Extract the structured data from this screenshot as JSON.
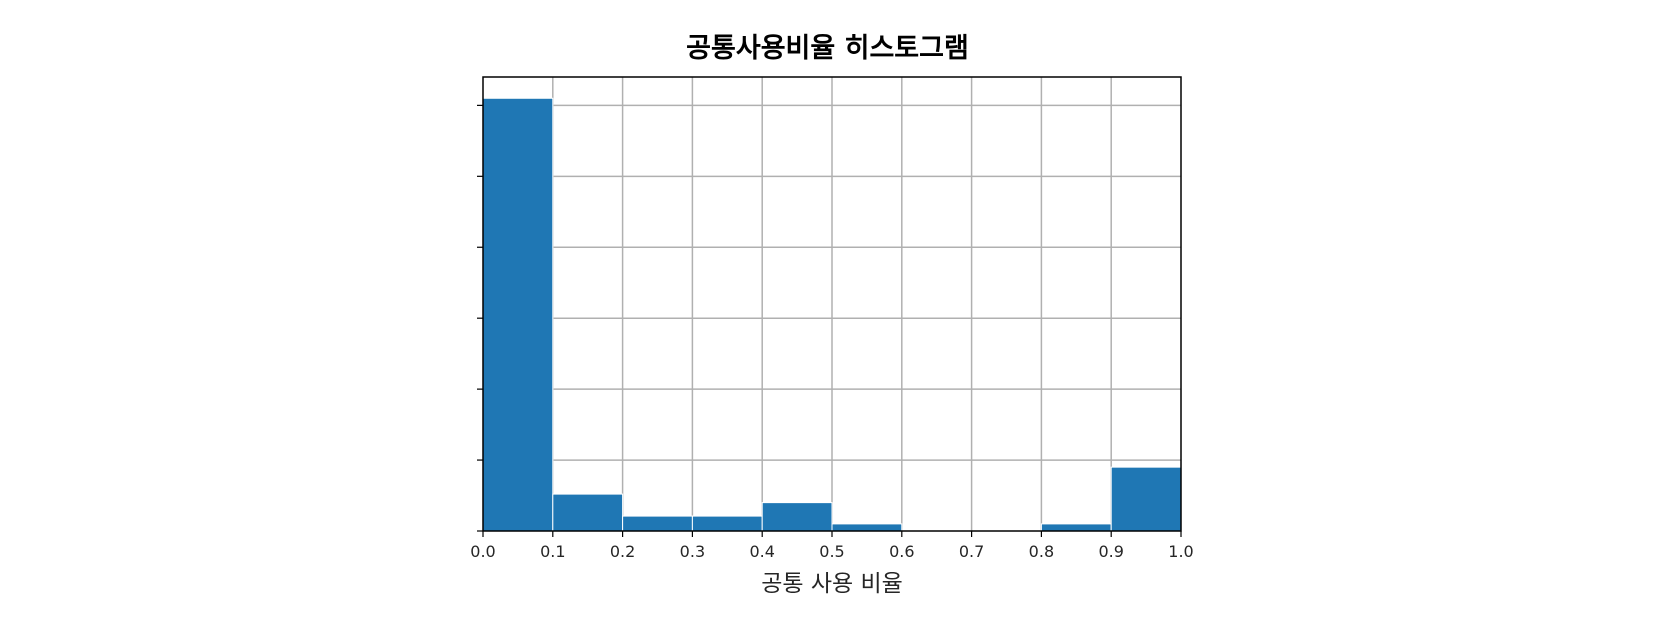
{
  "chart_data": {
    "type": "bar",
    "title": "공통사용비율 히스토그램",
    "xlabel": "공통 사용 비율",
    "ylabel": "",
    "bin_edges": [
      0.0,
      0.1,
      0.2,
      0.3,
      0.4,
      0.5,
      0.6,
      0.7,
      0.8,
      0.9,
      1.0
    ],
    "values": [
      61,
      5.2,
      2.1,
      2.1,
      4,
      1,
      0,
      0,
      1,
      9
    ],
    "xlim": [
      0.0,
      1.0
    ],
    "ylim": [
      0,
      64
    ],
    "x_ticks": [
      0.0,
      0.1,
      0.2,
      0.3,
      0.4,
      0.5,
      0.6,
      0.7,
      0.8,
      0.9,
      1.0
    ],
    "x_tick_labels": [
      "0.0",
      "0.1",
      "0.2",
      "0.3",
      "0.4",
      "0.5",
      "0.6",
      "0.7",
      "0.8",
      "0.9",
      "1.0"
    ],
    "y_ticks": [
      0,
      10,
      20,
      30,
      40,
      50,
      60
    ],
    "y_tick_labels_visible": false,
    "grid": true,
    "colors": {
      "bar_fill": "#1f77b4",
      "bar_edge": "#ffffff",
      "grid": "#b0b0b0",
      "frame": "#000000"
    }
  }
}
